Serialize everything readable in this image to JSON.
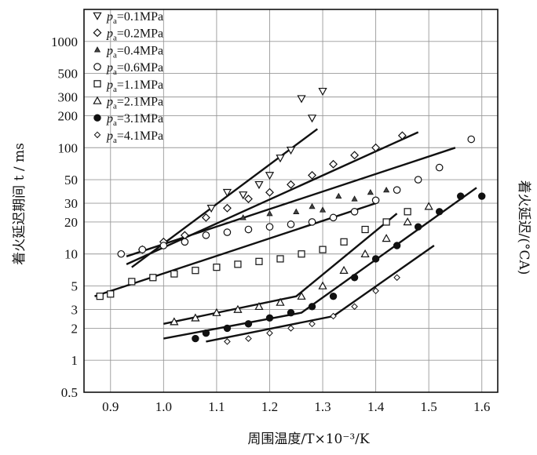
{
  "chart_data": {
    "type": "scatter",
    "xlabel_main": "周围温度",
    "xlabel_unit": "/T×10⁻³/K",
    "ylabel": "着火延迟期间 t / ms",
    "y2label": "着火延迟/(°CA)",
    "xlim": [
      0.85,
      1.63
    ],
    "ylim": [
      0.5,
      2000
    ],
    "y_scale": "log",
    "grid": true,
    "legend_position": "top-left",
    "x_ticks": [
      "0.9",
      "1.0",
      "1.1",
      "1.2",
      "1.3",
      "1.4",
      "1.5",
      "1.6"
    ],
    "y_ticks": [
      "0.5",
      "1",
      "2",
      "3",
      "5",
      "10",
      "20",
      "30",
      "50",
      "100",
      "200",
      "300",
      "500",
      "1000"
    ],
    "series": [
      {
        "name": "pa=0.1MPa",
        "pressure": "0.1",
        "marker": "tri-down-open",
        "points": [
          [
            1.09,
            27
          ],
          [
            1.12,
            38
          ],
          [
            1.15,
            36
          ],
          [
            1.18,
            45
          ],
          [
            1.2,
            55
          ],
          [
            1.22,
            80
          ],
          [
            1.24,
            95
          ],
          [
            1.26,
            290
          ],
          [
            1.28,
            190
          ],
          [
            1.3,
            340
          ]
        ],
        "fit": [
          [
            0.94,
            7.5
          ],
          [
            1.29,
            150
          ]
        ]
      },
      {
        "name": "pa=0.2MPa",
        "pressure": "0.2",
        "marker": "diamond-open",
        "points": [
          [
            0.96,
            11
          ],
          [
            1.0,
            13
          ],
          [
            1.04,
            15
          ],
          [
            1.08,
            22
          ],
          [
            1.12,
            27
          ],
          [
            1.16,
            33
          ],
          [
            1.2,
            38
          ],
          [
            1.24,
            45
          ],
          [
            1.28,
            55
          ],
          [
            1.32,
            70
          ],
          [
            1.36,
            85
          ],
          [
            1.4,
            100
          ],
          [
            1.45,
            130
          ]
        ],
        "fit": [
          [
            0.93,
            8
          ],
          [
            1.48,
            140
          ]
        ]
      },
      {
        "name": "pa=0.4MPa",
        "pressure": "0.4",
        "marker": "tri-up-small",
        "points": [
          [
            1.15,
            22
          ],
          [
            1.2,
            24
          ],
          [
            1.25,
            25
          ],
          [
            1.28,
            28
          ],
          [
            1.3,
            26
          ],
          [
            1.33,
            35
          ],
          [
            1.36,
            33
          ],
          [
            1.39,
            38
          ],
          [
            1.42,
            40
          ]
        ],
        "fit": []
      },
      {
        "name": "pa=0.6MPa",
        "pressure": "0.6",
        "marker": "circle-open",
        "points": [
          [
            0.92,
            10
          ],
          [
            0.96,
            11
          ],
          [
            1.0,
            12
          ],
          [
            1.04,
            13
          ],
          [
            1.08,
            15
          ],
          [
            1.12,
            16
          ],
          [
            1.16,
            17
          ],
          [
            1.2,
            18
          ],
          [
            1.24,
            19
          ],
          [
            1.28,
            20
          ],
          [
            1.32,
            22
          ],
          [
            1.36,
            25
          ],
          [
            1.4,
            32
          ],
          [
            1.44,
            40
          ],
          [
            1.48,
            50
          ],
          [
            1.52,
            65
          ],
          [
            1.58,
            120
          ]
        ],
        "fit": [
          [
            0.93,
            9.5
          ],
          [
            1.55,
            100
          ]
        ]
      },
      {
        "name": "pa=1.1MPa",
        "pressure": "1.1",
        "marker": "square-open",
        "points": [
          [
            0.88,
            4
          ],
          [
            0.9,
            4.2
          ],
          [
            0.94,
            5.5
          ],
          [
            0.98,
            6
          ],
          [
            1.02,
            6.5
          ],
          [
            1.06,
            7
          ],
          [
            1.1,
            7.5
          ],
          [
            1.14,
            8
          ],
          [
            1.18,
            8.5
          ],
          [
            1.22,
            9
          ],
          [
            1.26,
            10
          ],
          [
            1.3,
            11
          ],
          [
            1.34,
            13
          ],
          [
            1.38,
            17
          ],
          [
            1.42,
            20
          ],
          [
            1.46,
            25
          ]
        ],
        "fit": [
          [
            0.87,
            4
          ],
          [
            1.4,
            30
          ]
        ]
      },
      {
        "name": "pa=2.1MPa",
        "pressure": "2.1",
        "marker": "tri-up-open",
        "points": [
          [
            1.02,
            2.3
          ],
          [
            1.06,
            2.5
          ],
          [
            1.1,
            2.8
          ],
          [
            1.14,
            3
          ],
          [
            1.18,
            3.2
          ],
          [
            1.22,
            3.5
          ],
          [
            1.26,
            4
          ],
          [
            1.3,
            5
          ],
          [
            1.34,
            7
          ],
          [
            1.38,
            10
          ],
          [
            1.42,
            14
          ],
          [
            1.46,
            20
          ],
          [
            1.5,
            28
          ]
        ],
        "fit": [
          [
            1.0,
            2.2
          ],
          [
            1.25,
            4
          ],
          [
            1.44,
            24
          ]
        ]
      },
      {
        "name": "pa=3.1MPa",
        "pressure": "3.1",
        "marker": "circle-filled",
        "points": [
          [
            1.06,
            1.6
          ],
          [
            1.08,
            1.8
          ],
          [
            1.12,
            2
          ],
          [
            1.16,
            2.2
          ],
          [
            1.2,
            2.5
          ],
          [
            1.24,
            2.8
          ],
          [
            1.28,
            3.2
          ],
          [
            1.32,
            4
          ],
          [
            1.36,
            6
          ],
          [
            1.4,
            9
          ],
          [
            1.44,
            12
          ],
          [
            1.48,
            18
          ],
          [
            1.52,
            25
          ],
          [
            1.56,
            35
          ],
          [
            1.6,
            35
          ]
        ],
        "fit": [
          [
            1.0,
            1.6
          ],
          [
            1.26,
            2.8
          ],
          [
            1.59,
            42
          ]
        ]
      },
      {
        "name": "pa=4.1MPa",
        "pressure": "4.1",
        "marker": "diamond-small",
        "points": [
          [
            1.12,
            1.5
          ],
          [
            1.16,
            1.6
          ],
          [
            1.2,
            1.8
          ],
          [
            1.24,
            2
          ],
          [
            1.28,
            2.2
          ],
          [
            1.32,
            2.6
          ],
          [
            1.36,
            3.2
          ],
          [
            1.4,
            4.5
          ],
          [
            1.44,
            6
          ]
        ],
        "fit": [
          [
            1.08,
            1.5
          ],
          [
            1.32,
            2.6
          ],
          [
            1.51,
            12
          ]
        ]
      }
    ]
  }
}
